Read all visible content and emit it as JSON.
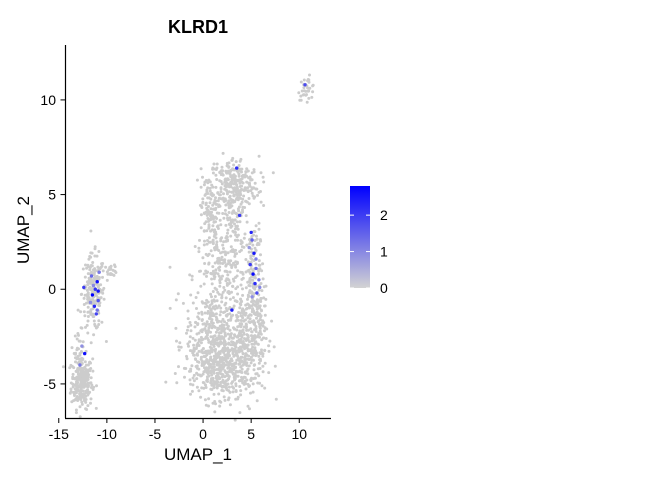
{
  "chart_data": {
    "type": "scatter",
    "title": "KLRD1",
    "xlabel": "UMAP_1",
    "ylabel": "UMAP_2",
    "xlim": [
      -14.3,
      13.3
    ],
    "ylim": [
      -6.8,
      12.9
    ],
    "x_ticks": [
      {
        "value": -15,
        "label": "-15"
      },
      {
        "value": -10,
        "label": "-10"
      },
      {
        "value": -5,
        "label": "-5"
      },
      {
        "value": 0,
        "label": "0"
      },
      {
        "value": 5,
        "label": "5"
      },
      {
        "value": 10,
        "label": "10"
      }
    ],
    "y_ticks": [
      {
        "value": -5,
        "label": "-5"
      },
      {
        "value": 0,
        "label": "0"
      },
      {
        "value": 5,
        "label": "5"
      },
      {
        "value": 10,
        "label": "10"
      }
    ],
    "grid": false,
    "legend": {
      "placement": "right",
      "type": "colorbar",
      "range": [
        0,
        2.8
      ],
      "low_color": "#d3d3d3",
      "high_color": "#0000ff",
      "ticks": [
        {
          "value": 0,
          "label": "0"
        },
        {
          "value": 1,
          "label": "1"
        },
        {
          "value": 2,
          "label": "2"
        }
      ]
    },
    "colors": {
      "low": "#cccccc",
      "high": "#0000ff"
    },
    "background_clusters": [
      {
        "cx": -12.6,
        "cy": -4.9,
        "sx": 0.55,
        "sy": 0.7,
        "n": 240
      },
      {
        "cx": -12.9,
        "cy": -3.2,
        "sx": 0.25,
        "sy": 0.5,
        "n": 25
      },
      {
        "cx": -11.4,
        "cy": -0.2,
        "sx": 0.6,
        "sy": 1.0,
        "n": 200
      },
      {
        "cx": -9.6,
        "cy": 1.0,
        "sx": 0.35,
        "sy": 0.15,
        "n": 22
      },
      {
        "cx": 10.8,
        "cy": 10.6,
        "sx": 0.45,
        "sy": 0.3,
        "n": 35
      },
      {
        "cx": 3.2,
        "cy": 5.6,
        "sx": 1.3,
        "sy": 0.7,
        "n": 230
      },
      {
        "cx": 0.7,
        "cy": 4.0,
        "sx": 0.45,
        "sy": 1.0,
        "n": 110
      },
      {
        "cx": 3.2,
        "cy": 3.6,
        "sx": 0.8,
        "sy": 1.0,
        "n": 120
      },
      {
        "cx": 2.2,
        "cy": 1.0,
        "sx": 1.5,
        "sy": 1.0,
        "n": 180
      },
      {
        "cx": 5.3,
        "cy": 0.7,
        "sx": 0.45,
        "sy": 1.7,
        "n": 120
      },
      {
        "cx": 1.1,
        "cy": -2.8,
        "sx": 1.5,
        "sy": 1.4,
        "n": 460
      },
      {
        "cx": 4.5,
        "cy": -3.0,
        "sx": 1.1,
        "sy": 1.3,
        "n": 300
      },
      {
        "cx": 1.5,
        "cy": -4.4,
        "sx": 1.4,
        "sy": 0.7,
        "n": 200
      },
      {
        "cx": 5.6,
        "cy": -1.2,
        "sx": 0.5,
        "sy": 0.6,
        "n": 60
      }
    ],
    "expressing_points": [
      {
        "x": 3.5,
        "y": 6.4,
        "value": 2.2
      },
      {
        "x": 10.6,
        "y": 10.8,
        "value": 1.8
      },
      {
        "x": 3.8,
        "y": 3.9,
        "value": 2.0
      },
      {
        "x": 5.0,
        "y": 3.0,
        "value": 2.3
      },
      {
        "x": 5.1,
        "y": 2.6,
        "value": 1.5
      },
      {
        "x": 5.3,
        "y": 1.9,
        "value": 2.5
      },
      {
        "x": 4.9,
        "y": 1.3,
        "value": 2.0
      },
      {
        "x": 5.5,
        "y": 1.1,
        "value": 1.4
      },
      {
        "x": 5.2,
        "y": 0.8,
        "value": 2.7
      },
      {
        "x": 5.8,
        "y": 0.5,
        "value": 1.2
      },
      {
        "x": 5.4,
        "y": 0.3,
        "value": 2.2
      },
      {
        "x": 5.9,
        "y": 0.1,
        "value": 1.0
      },
      {
        "x": 5.6,
        "y": -0.2,
        "value": 1.8
      },
      {
        "x": 5.1,
        "y": -0.4,
        "value": 0.9
      },
      {
        "x": 5.5,
        "y": 1.6,
        "value": 1.1
      },
      {
        "x": 4.8,
        "y": 2.2,
        "value": 0.8
      },
      {
        "x": 3.0,
        "y": -1.1,
        "value": 2.4
      },
      {
        "x": -11.0,
        "y": 0.4,
        "value": 2.6
      },
      {
        "x": -11.2,
        "y": 0.0,
        "value": 2.1
      },
      {
        "x": -11.5,
        "y": -0.3,
        "value": 2.8
      },
      {
        "x": -10.9,
        "y": -0.6,
        "value": 1.7
      },
      {
        "x": -11.3,
        "y": -0.9,
        "value": 2.3
      },
      {
        "x": -11.6,
        "y": 0.7,
        "value": 1.4
      },
      {
        "x": -12.4,
        "y": 0.1,
        "value": 2.0
      },
      {
        "x": -11.1,
        "y": -1.3,
        "value": 1.9
      },
      {
        "x": -10.8,
        "y": 0.9,
        "value": 1.2
      },
      {
        "x": -11.4,
        "y": 0.2,
        "value": 1.0
      },
      {
        "x": -10.9,
        "y": -0.1,
        "value": 2.5
      },
      {
        "x": -11.7,
        "y": -0.7,
        "value": 0.9
      },
      {
        "x": -11.0,
        "y": -1.1,
        "value": 1.3
      },
      {
        "x": -12.3,
        "y": -3.4,
        "value": 2.6
      },
      {
        "x": -12.8,
        "y": -4.0,
        "value": 1.2
      },
      {
        "x": -12.6,
        "y": -3.0,
        "value": 0.9
      }
    ]
  }
}
